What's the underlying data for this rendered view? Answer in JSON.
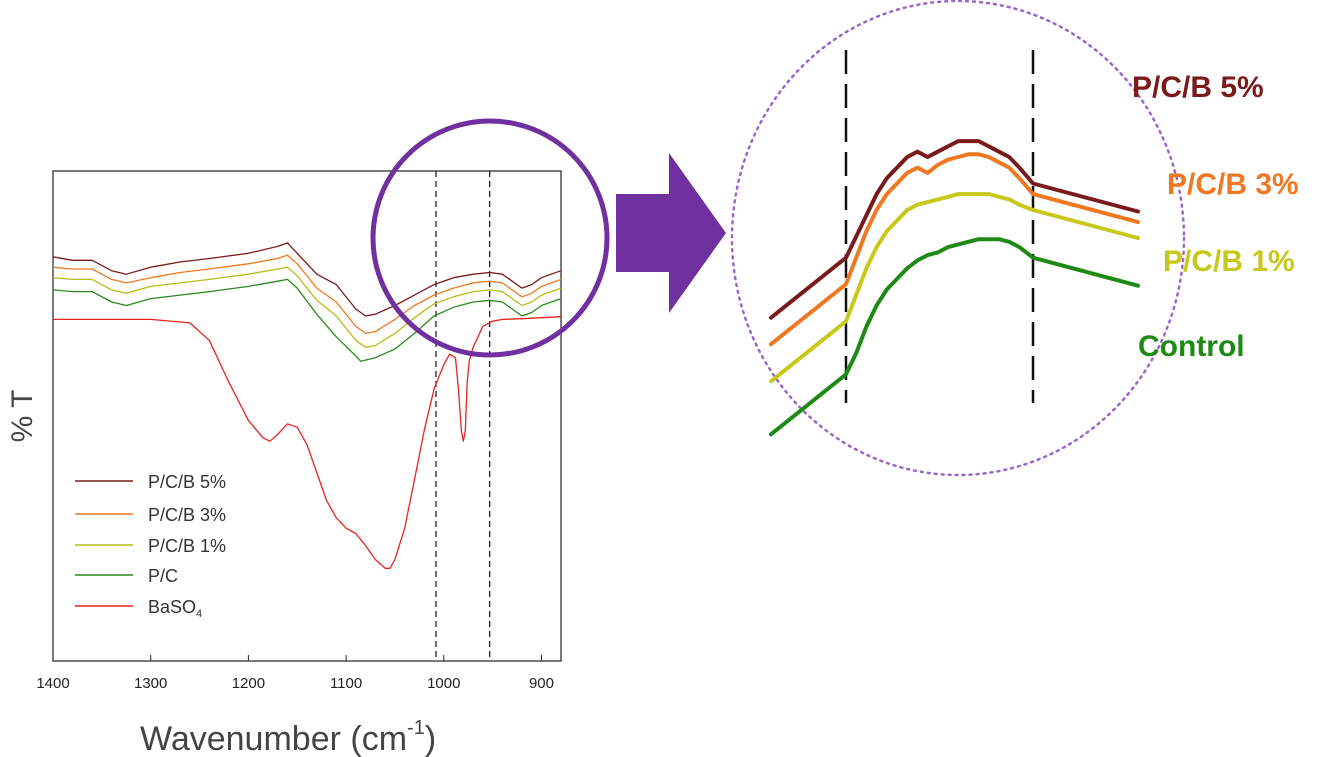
{
  "chart_data": [
    {
      "type": "line",
      "title": "",
      "xlabel": "Wavenumber (cm−1)",
      "xlabel_main": "Wavenumber (cm",
      "xlabel_sup": "-1",
      "xlabel_close": ")",
      "ylabel": "% T",
      "xlim": [
        1400,
        880
      ],
      "x_reversed": true,
      "ylim": [
        0,
        100
      ],
      "y_ticks_labeled": false,
      "xticks": [
        1400,
        1300,
        1200,
        1100,
        1000,
        900
      ],
      "xtick_labels": [
        "1400",
        "1300",
        "1200",
        "1100",
        "1000",
        "900"
      ],
      "grid": false,
      "legend": "bottom-left",
      "reference_lines_x": [
        1008,
        953
      ],
      "series": [
        {
          "name": "P/C/B 5%",
          "color": "#7a1a1a",
          "x": [
            1400,
            1380,
            1360,
            1340,
            1325,
            1300,
            1270,
            1240,
            1200,
            1170,
            1160,
            1150,
            1130,
            1110,
            1090,
            1080,
            1070,
            1050,
            1030,
            1010,
            990,
            970,
            953,
            940,
            930,
            920,
            910,
            900,
            880
          ],
          "y": [
            90,
            89,
            89,
            86,
            85,
            87,
            88.5,
            89.5,
            91,
            93,
            94,
            91,
            85,
            82,
            75,
            73,
            73.5,
            76,
            79,
            82,
            84,
            85,
            85.5,
            85,
            83,
            81,
            82,
            84,
            86
          ]
        },
        {
          "name": "P/C/B 3%",
          "color": "#f07820",
          "x": [
            1400,
            1380,
            1360,
            1340,
            1325,
            1300,
            1270,
            1240,
            1200,
            1170,
            1160,
            1150,
            1130,
            1110,
            1090,
            1080,
            1070,
            1050,
            1030,
            1010,
            990,
            970,
            953,
            940,
            930,
            920,
            910,
            900,
            880
          ],
          "y": [
            87,
            86.5,
            86.5,
            83.5,
            82.5,
            84,
            85.5,
            86.5,
            88,
            89.5,
            90.5,
            88,
            81,
            77,
            70,
            68,
            68.5,
            72,
            76,
            79,
            81,
            82.5,
            83,
            82.5,
            80.5,
            78.5,
            79.5,
            81.5,
            83.5
          ]
        },
        {
          "name": "P/C/B 1%",
          "color": "#b5be16",
          "x": [
            1400,
            1380,
            1360,
            1340,
            1325,
            1300,
            1270,
            1240,
            1200,
            1170,
            1160,
            1150,
            1130,
            1110,
            1090,
            1080,
            1070,
            1050,
            1030,
            1010,
            990,
            970,
            953,
            940,
            930,
            920,
            910,
            900,
            880
          ],
          "y": [
            84,
            83.5,
            83.5,
            80.5,
            79.5,
            81.5,
            82.5,
            83.5,
            85,
            86.5,
            87,
            84.5,
            77.5,
            73,
            66,
            64,
            64.5,
            68,
            72.5,
            76.5,
            78.5,
            80,
            80.5,
            80,
            78,
            76,
            77,
            79,
            81
          ]
        },
        {
          "name": "P/C",
          "color": "#2a8a1e",
          "x": [
            1400,
            1380,
            1360,
            1340,
            1325,
            1300,
            1270,
            1240,
            1200,
            1170,
            1160,
            1150,
            1130,
            1110,
            1090,
            1085,
            1070,
            1050,
            1030,
            1010,
            990,
            970,
            953,
            940,
            930,
            920,
            910,
            900,
            880
          ],
          "y": [
            80.5,
            80,
            80,
            77,
            76,
            78,
            79,
            80,
            81.5,
            83,
            83.5,
            81,
            73.5,
            67,
            61.5,
            60,
            61,
            63.5,
            68,
            73,
            75.5,
            77,
            77.5,
            77,
            75,
            73,
            74,
            76,
            78
          ]
        },
        {
          "name": "BaSO4",
          "name_main": "BaSO",
          "name_sub": "4",
          "color": "#e8231e",
          "x": [
            1400,
            1300,
            1260,
            1240,
            1220,
            1200,
            1185,
            1178,
            1170,
            1160,
            1150,
            1140,
            1130,
            1120,
            1110,
            1100,
            1090,
            1080,
            1070,
            1060,
            1055,
            1050,
            1040,
            1030,
            1020,
            1010,
            1000,
            994,
            988,
            985,
            982,
            980,
            978,
            976,
            974,
            970,
            960,
            950,
            940,
            920,
            900,
            880
          ],
          "y": [
            72,
            72,
            71,
            66,
            54,
            43,
            38,
            37,
            39,
            42,
            41,
            36,
            28,
            20,
            15,
            12,
            10.5,
            7,
            3,
            0.5,
            0.5,
            3,
            12,
            26,
            40,
            52,
            59,
            62,
            61,
            52,
            40,
            37,
            40,
            54,
            60,
            64,
            70,
            71.5,
            72,
            72.2,
            72.5,
            72.8
          ]
        }
      ]
    },
    {
      "type": "line",
      "title": "",
      "xlim": [
        1008,
        953
      ],
      "x_reversed": true,
      "grid": false,
      "legend": "right",
      "series": [
        {
          "name": "P/C/B 5%",
          "color": "#7a1a1a",
          "y": [
            -9,
            -5,
            -1,
            3,
            6,
            8,
            10,
            11,
            10,
            11,
            12,
            13,
            13,
            13,
            12,
            11,
            10,
            8,
            5
          ],
          "y_note": "relative %T (offset)"
        },
        {
          "name": "P/C/B 3%",
          "color": "#f07820",
          "y": [
            -14,
            -9,
            -4,
            0,
            3,
            5,
            7,
            8,
            7,
            8.5,
            9.5,
            10,
            10.5,
            10.5,
            10,
            9,
            8,
            6,
            3
          ]
        },
        {
          "name": "P/C/B 1%",
          "color": "#c8c81a",
          "y": [
            -21,
            -16,
            -11,
            -7,
            -4,
            -2,
            0,
            1,
            1.5,
            2,
            2.5,
            3,
            3,
            3,
            3,
            2.5,
            2,
            1,
            0
          ]
        },
        {
          "name": "Control",
          "color": "#1e8a14",
          "y": [
            -31,
            -27,
            -22,
            -18,
            -15,
            -13,
            -11,
            -9.5,
            -8.5,
            -8,
            -7,
            -6.5,
            -6,
            -5.5,
            -5.5,
            -5.5,
            -6,
            -7,
            -9
          ]
        }
      ]
    }
  ],
  "zoom_x": [
    1008,
    1005,
    1002,
    999,
    996,
    993,
    990,
    987,
    984,
    981,
    978,
    975,
    972,
    969,
    966,
    963,
    960,
    957,
    953
  ],
  "zoom_labels": [
    {
      "text": "P/C/B 5%",
      "color": "#7a1a1a"
    },
    {
      "text": "P/C/B 3%",
      "color": "#f07820"
    },
    {
      "text": "P/C/B 1%",
      "color": "#c8c81a"
    },
    {
      "text": "Control",
      "color": "#1e8a14"
    }
  ],
  "colors": {
    "highlight_circle": "#7030a0",
    "arrow": "#7030a0",
    "zoom_border": "#9966cc"
  }
}
